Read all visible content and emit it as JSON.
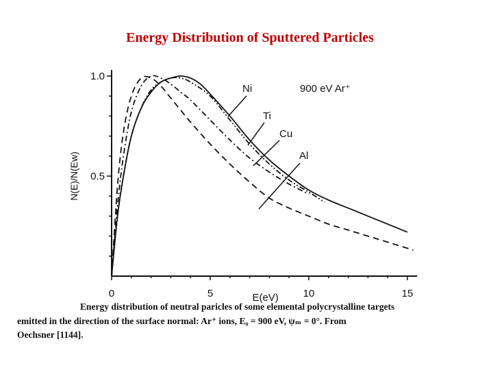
{
  "slide": {
    "title": "Energy Distribution of Sputtered Particles"
  },
  "caption": {
    "line1": "Energy distribution of neutral paricles of some elemental polycrystalline targets",
    "line2": "emitted in the direction of the surface normal: Ar⁺ ions, E₀ = 900 eV, ψₘ = 0°. From",
    "line3": "Oechsner [1144]."
  },
  "colors": {
    "title": "#c00000",
    "curves": "#111111"
  },
  "chart_data": {
    "type": "line",
    "xlabel": "E(eV)",
    "ylabel": "N(E)/N(Ew)",
    "xlim": [
      0,
      15.5
    ],
    "ylim": [
      0,
      1.02
    ],
    "x_ticks": [
      0,
      5,
      10,
      15
    ],
    "y_ticks": [
      0.5,
      1.0
    ],
    "x_tick_labels": [
      "0",
      "5",
      "10",
      "15"
    ],
    "y_tick_labels": [
      "0.5",
      "1.0"
    ],
    "annotation": "900 eV Ar⁺",
    "grid": false,
    "series": [
      {
        "name": "Ni",
        "style": "solid",
        "x": [
          0,
          0.3,
          0.6,
          1,
          1.5,
          2,
          2.5,
          3,
          3.5,
          4,
          4.5,
          5,
          6,
          7,
          8,
          9,
          10,
          11,
          12,
          13,
          14,
          15
        ],
        "y": [
          0.0,
          0.3,
          0.5,
          0.7,
          0.84,
          0.92,
          0.97,
          0.99,
          1.0,
          0.99,
          0.96,
          0.91,
          0.8,
          0.68,
          0.58,
          0.5,
          0.43,
          0.38,
          0.34,
          0.3,
          0.26,
          0.22
        ]
      },
      {
        "name": "Ti",
        "style": "dash-dot",
        "x": [
          0,
          0.3,
          0.6,
          1,
          1.5,
          2,
          2.5,
          3,
          3.5,
          4,
          5,
          6,
          7,
          8,
          9,
          10
        ],
        "y": [
          0.0,
          0.35,
          0.6,
          0.82,
          0.95,
          1.0,
          0.99,
          0.96,
          0.92,
          0.88,
          0.78,
          0.68,
          0.59,
          0.52,
          0.46,
          0.41
        ]
      },
      {
        "name": "Cu",
        "style": "dash-dot-dot",
        "x": [
          0,
          0.3,
          0.6,
          1,
          1.5,
          2,
          2.5,
          3,
          3.5,
          4,
          5,
          6,
          7,
          8,
          9,
          10,
          10.8
        ],
        "y": [
          0.0,
          0.3,
          0.5,
          0.7,
          0.84,
          0.93,
          0.97,
          0.99,
          0.99,
          0.97,
          0.9,
          0.78,
          0.66,
          0.56,
          0.48,
          0.42,
          0.37
        ]
      },
      {
        "name": "Al",
        "style": "dashed",
        "x": [
          0,
          0.3,
          0.6,
          1,
          1.5,
          2,
          2.5,
          3,
          3.5,
          4,
          5,
          6,
          7,
          8,
          9,
          10,
          11,
          12,
          13,
          14,
          15.3
        ],
        "y": [
          0.0,
          0.45,
          0.72,
          0.9,
          0.99,
          0.99,
          0.95,
          0.89,
          0.83,
          0.77,
          0.66,
          0.56,
          0.47,
          0.39,
          0.34,
          0.3,
          0.26,
          0.23,
          0.2,
          0.17,
          0.13
        ]
      }
    ]
  }
}
